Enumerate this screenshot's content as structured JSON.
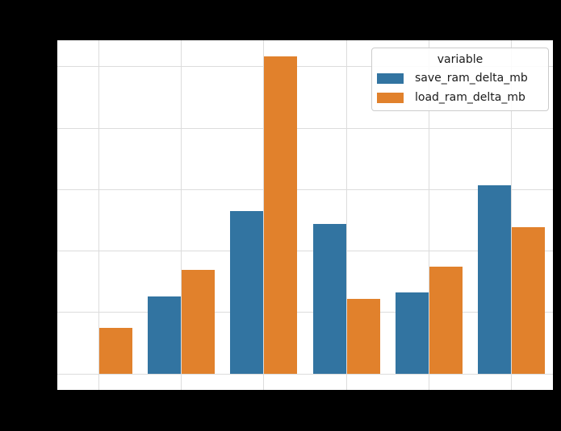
{
  "figure": {
    "background": "#000000",
    "axes_background": "#ffffff",
    "note": "axis title and tick labels are not visible (rendered black on black figure background)"
  },
  "chart_data": {
    "type": "bar",
    "title": "",
    "xlabel": "",
    "ylabel": "",
    "categories": [
      "",
      "",
      "",
      "",
      "",
      ""
    ],
    "series": [
      {
        "name": "save_ram_delta_mb",
        "color": "#3274a1",
        "values": [
          0,
          1.26,
          2.65,
          2.44,
          1.33,
          3.07
        ]
      },
      {
        "name": "load_ram_delta_mb",
        "color": "#e1812c",
        "values": [
          0.75,
          1.69,
          5.17,
          1.22,
          1.75,
          2.39
        ]
      }
    ],
    "values_unit": "gridline units (y tick labels not visible)",
    "ylim": [
      -0.26,
      5.43
    ],
    "grid": true,
    "gridline_interval": 1,
    "grid_color": "#dcdcdc",
    "tick_labels_visible": false,
    "legend": {
      "title": "variable",
      "position": "upper right",
      "border_color": "#cccccc",
      "text_color": "#1a1a1a"
    }
  }
}
